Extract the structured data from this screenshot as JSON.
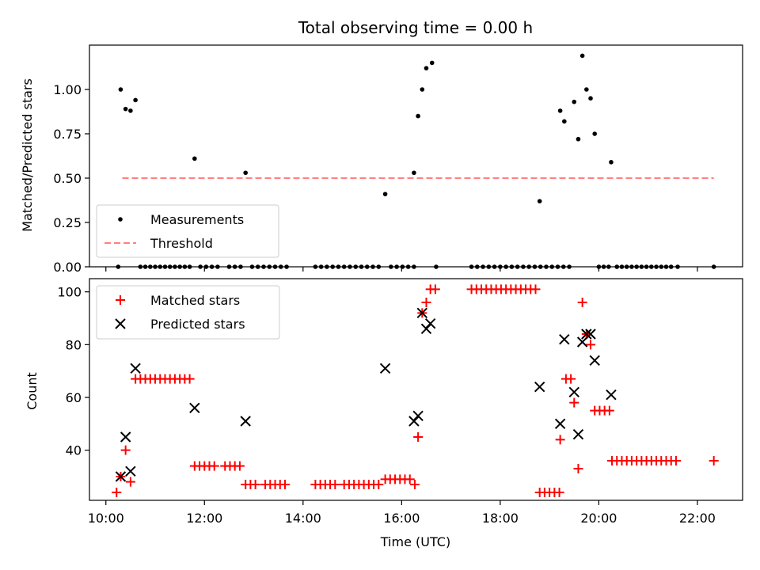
{
  "chart_data": [
    {
      "type": "scatter",
      "title": "Total observing time = 0.00 h",
      "xlabel": "",
      "ylabel": "Matched/Predicted stars",
      "xlim": [
        "09:40",
        "22:55"
      ],
      "ylim": [
        0,
        1.25
      ],
      "yticks": [
        "0.00",
        "0.25",
        "0.50",
        "0.75",
        "1.00"
      ],
      "legend": {
        "placement": "lower-left",
        "entries": [
          "Measurements",
          "Threshold"
        ]
      },
      "threshold": {
        "name": "Threshold",
        "value": 0.5,
        "x": [
          "10:20",
          "22:20"
        ],
        "color": "#ff8080"
      },
      "series": [
        {
          "name": "Measurements",
          "color": "#000000",
          "points": [
            [
              "10:15",
              0
            ],
            [
              "10:18",
              1.0
            ],
            [
              "10:24",
              0.89
            ],
            [
              "10:30",
              0.88
            ],
            [
              "10:36",
              0.94
            ],
            [
              "10:42",
              0
            ],
            [
              "10:48",
              0
            ],
            [
              "10:54",
              0
            ],
            [
              "11:00",
              0
            ],
            [
              "11:06",
              0
            ],
            [
              "11:12",
              0
            ],
            [
              "11:18",
              0
            ],
            [
              "11:24",
              0
            ],
            [
              "11:30",
              0
            ],
            [
              "11:36",
              0
            ],
            [
              "11:42",
              0
            ],
            [
              "11:48",
              0.61
            ],
            [
              "11:55",
              0
            ],
            [
              "12:02",
              0
            ],
            [
              "12:09",
              0
            ],
            [
              "12:16",
              0
            ],
            [
              "12:30",
              0
            ],
            [
              "12:37",
              0
            ],
            [
              "12:44",
              0
            ],
            [
              "12:50",
              0.53
            ],
            [
              "12:58",
              0
            ],
            [
              "13:05",
              0
            ],
            [
              "13:12",
              0
            ],
            [
              "13:19",
              0
            ],
            [
              "13:26",
              0
            ],
            [
              "13:33",
              0
            ],
            [
              "13:40",
              0
            ],
            [
              "14:15",
              0
            ],
            [
              "14:22",
              0
            ],
            [
              "14:29",
              0
            ],
            [
              "14:36",
              0
            ],
            [
              "14:43",
              0
            ],
            [
              "14:50",
              0
            ],
            [
              "14:57",
              0
            ],
            [
              "15:04",
              0
            ],
            [
              "15:11",
              0
            ],
            [
              "15:18",
              0
            ],
            [
              "15:25",
              0
            ],
            [
              "15:32",
              0
            ],
            [
              "15:40",
              0.41
            ],
            [
              "15:47",
              0
            ],
            [
              "15:54",
              0
            ],
            [
              "16:01",
              0
            ],
            [
              "16:08",
              0
            ],
            [
              "16:15",
              0
            ],
            [
              "16:15",
              0.53
            ],
            [
              "16:20",
              0.85
            ],
            [
              "16:25",
              1.0
            ],
            [
              "16:30",
              1.12
            ],
            [
              "16:37",
              1.15
            ],
            [
              "16:42",
              0
            ],
            [
              "17:25",
              0
            ],
            [
              "17:32",
              0
            ],
            [
              "17:39",
              0
            ],
            [
              "17:46",
              0
            ],
            [
              "17:53",
              0
            ],
            [
              "18:00",
              0
            ],
            [
              "18:07",
              0
            ],
            [
              "18:14",
              0
            ],
            [
              "18:21",
              0
            ],
            [
              "18:28",
              0
            ],
            [
              "18:35",
              0
            ],
            [
              "18:42",
              0
            ],
            [
              "18:49",
              0
            ],
            [
              "18:56",
              0
            ],
            [
              "18:48",
              0.37
            ],
            [
              "19:03",
              0
            ],
            [
              "19:10",
              0
            ],
            [
              "19:17",
              0
            ],
            [
              "19:24",
              0
            ],
            [
              "19:13",
              0.88
            ],
            [
              "19:18",
              0.82
            ],
            [
              "19:30",
              0.93
            ],
            [
              "19:35",
              0.72
            ],
            [
              "19:40",
              1.19
            ],
            [
              "19:45",
              1.0
            ],
            [
              "19:50",
              0.95
            ],
            [
              "19:55",
              0.75
            ],
            [
              "20:00",
              0
            ],
            [
              "20:06",
              0
            ],
            [
              "20:12",
              0
            ],
            [
              "20:15",
              0.59
            ],
            [
              "20:22",
              0
            ],
            [
              "20:28",
              0
            ],
            [
              "20:34",
              0
            ],
            [
              "20:40",
              0
            ],
            [
              "20:46",
              0
            ],
            [
              "20:52",
              0
            ],
            [
              "20:58",
              0
            ],
            [
              "21:04",
              0
            ],
            [
              "21:10",
              0
            ],
            [
              "21:16",
              0
            ],
            [
              "21:22",
              0
            ],
            [
              "21:28",
              0
            ],
            [
              "21:36",
              0
            ],
            [
              "22:20",
              0
            ]
          ]
        }
      ]
    },
    {
      "type": "scatter",
      "title": "",
      "xlabel": "Time (UTC)",
      "ylabel": "Count",
      "xlim": [
        "09:40",
        "22:55"
      ],
      "ylim": [
        21,
        105
      ],
      "xticks": [
        "10:00",
        "12:00",
        "14:00",
        "16:00",
        "18:00",
        "20:00",
        "22:00"
      ],
      "yticks": [
        "40",
        "60",
        "80",
        "100"
      ],
      "legend": {
        "placement": "upper-left",
        "entries": [
          "Matched stars",
          "Predicted stars"
        ]
      },
      "series": [
        {
          "name": "Matched stars",
          "marker": "plus",
          "color": "#ff0000",
          "points": [
            [
              "10:13",
              24
            ],
            [
              "10:18",
              30
            ],
            [
              "10:24",
              40
            ],
            [
              "10:30",
              28
            ],
            [
              "10:36",
              67
            ],
            [
              "10:42",
              67
            ],
            [
              "10:48",
              67
            ],
            [
              "10:54",
              67
            ],
            [
              "11:00",
              67
            ],
            [
              "11:06",
              67
            ],
            [
              "11:12",
              67
            ],
            [
              "11:18",
              67
            ],
            [
              "11:24",
              67
            ],
            [
              "11:30",
              67
            ],
            [
              "11:36",
              67
            ],
            [
              "11:42",
              67
            ],
            [
              "11:48",
              34
            ],
            [
              "11:54",
              34
            ],
            [
              "12:00",
              34
            ],
            [
              "12:06",
              34
            ],
            [
              "12:12",
              34
            ],
            [
              "12:25",
              34
            ],
            [
              "12:31",
              34
            ],
            [
              "12:37",
              34
            ],
            [
              "12:43",
              34
            ],
            [
              "12:50",
              27
            ],
            [
              "12:56",
              27
            ],
            [
              "13:02",
              27
            ],
            [
              "13:14",
              27
            ],
            [
              "13:20",
              27
            ],
            [
              "13:26",
              27
            ],
            [
              "13:32",
              27
            ],
            [
              "13:38",
              27
            ],
            [
              "14:15",
              27
            ],
            [
              "14:21",
              27
            ],
            [
              "14:27",
              27
            ],
            [
              "14:33",
              27
            ],
            [
              "14:39",
              27
            ],
            [
              "14:50",
              27
            ],
            [
              "14:56",
              27
            ],
            [
              "15:02",
              27
            ],
            [
              "15:08",
              27
            ],
            [
              "15:14",
              27
            ],
            [
              "15:20",
              27
            ],
            [
              "15:26",
              27
            ],
            [
              "15:32",
              27
            ],
            [
              "15:40",
              29
            ],
            [
              "15:46",
              29
            ],
            [
              "15:52",
              29
            ],
            [
              "15:58",
              29
            ],
            [
              "16:04",
              29
            ],
            [
              "16:10",
              29
            ],
            [
              "16:16",
              27
            ],
            [
              "16:20",
              45
            ],
            [
              "16:25",
              92
            ],
            [
              "16:30",
              96
            ],
            [
              "16:35",
              101
            ],
            [
              "16:41",
              101
            ],
            [
              "17:25",
              101
            ],
            [
              "17:31",
              101
            ],
            [
              "17:37",
              101
            ],
            [
              "17:43",
              101
            ],
            [
              "17:49",
              101
            ],
            [
              "17:55",
              101
            ],
            [
              "18:01",
              101
            ],
            [
              "18:07",
              101
            ],
            [
              "18:13",
              101
            ],
            [
              "18:19",
              101
            ],
            [
              "18:25",
              101
            ],
            [
              "18:31",
              101
            ],
            [
              "18:37",
              101
            ],
            [
              "18:43",
              101
            ],
            [
              "18:48",
              24
            ],
            [
              "18:54",
              24
            ],
            [
              "19:00",
              24
            ],
            [
              "19:06",
              24
            ],
            [
              "19:12",
              24
            ],
            [
              "19:13",
              44
            ],
            [
              "19:20",
              67
            ],
            [
              "19:26",
              67
            ],
            [
              "19:30",
              58
            ],
            [
              "19:35",
              33
            ],
            [
              "19:40",
              96
            ],
            [
              "19:45",
              84
            ],
            [
              "19:50",
              80
            ],
            [
              "19:55",
              55
            ],
            [
              "20:01",
              55
            ],
            [
              "20:07",
              55
            ],
            [
              "20:13",
              55
            ],
            [
              "20:16",
              36
            ],
            [
              "20:22",
              36
            ],
            [
              "20:28",
              36
            ],
            [
              "20:34",
              36
            ],
            [
              "20:40",
              36
            ],
            [
              "20:46",
              36
            ],
            [
              "20:52",
              36
            ],
            [
              "20:58",
              36
            ],
            [
              "21:04",
              36
            ],
            [
              "21:10",
              36
            ],
            [
              "21:16",
              36
            ],
            [
              "21:22",
              36
            ],
            [
              "21:28",
              36
            ],
            [
              "21:34",
              36
            ],
            [
              "22:20",
              36
            ]
          ]
        },
        {
          "name": "Predicted stars",
          "marker": "x",
          "color": "#000000",
          "points": [
            [
              "10:18",
              30
            ],
            [
              "10:24",
              45
            ],
            [
              "10:30",
              32
            ],
            [
              "10:36",
              71
            ],
            [
              "11:48",
              56
            ],
            [
              "12:50",
              51
            ],
            [
              "15:40",
              71
            ],
            [
              "16:15",
              51
            ],
            [
              "16:20",
              53
            ],
            [
              "16:25",
              92
            ],
            [
              "16:30",
              86
            ],
            [
              "16:35",
              88
            ],
            [
              "18:48",
              64
            ],
            [
              "19:13",
              50
            ],
            [
              "19:18",
              82
            ],
            [
              "19:30",
              62
            ],
            [
              "19:35",
              46
            ],
            [
              "19:40",
              81
            ],
            [
              "19:45",
              84
            ],
            [
              "19:50",
              84
            ],
            [
              "19:55",
              74
            ],
            [
              "20:15",
              61
            ]
          ]
        }
      ]
    }
  ]
}
